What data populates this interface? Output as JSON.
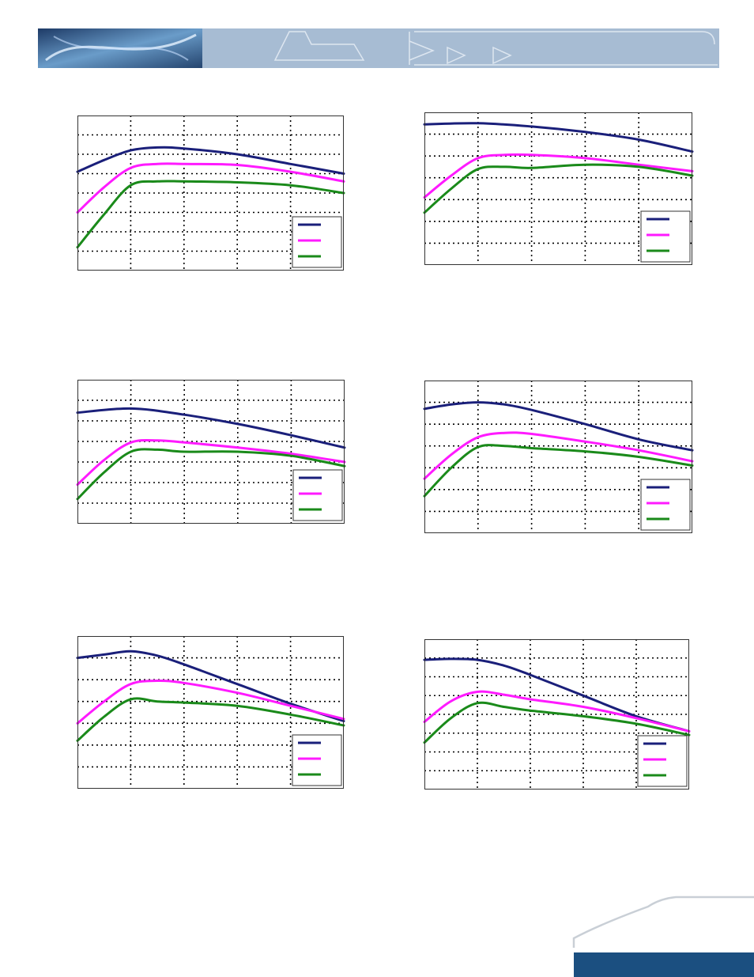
{
  "page": {
    "banner_colors": {
      "left_start": "#1d3a66",
      "left_end": "#6a9cc9",
      "band": "#a7bcd3",
      "outline": "#ffffff"
    },
    "footer_colors": {
      "bar": "#1b4f80",
      "swoosh": "#c9cfd6"
    }
  },
  "legend_colors": {
    "series1": "#1a1f7a",
    "series2": "#ff1aff",
    "series3": "#1a8a1a"
  },
  "chart_data": [
    {
      "type": "line",
      "id": "chart-1",
      "xlim": [
        0,
        5
      ],
      "ylim": [
        0,
        8
      ],
      "x_gridlines": 5,
      "y_gridlines": 8,
      "grid": true,
      "legend_placement": "bottom-right",
      "series": [
        {
          "color": "#1a1f7a",
          "x": [
            0,
            0.5,
            1,
            1.5,
            2,
            3,
            4,
            5
          ],
          "y": [
            5.1,
            5.7,
            6.2,
            6.35,
            6.3,
            6.0,
            5.5,
            5.0
          ]
        },
        {
          "color": "#ff1aff",
          "x": [
            0,
            0.5,
            1,
            1.5,
            2,
            3,
            4,
            5
          ],
          "y": [
            3.0,
            4.3,
            5.3,
            5.5,
            5.5,
            5.45,
            5.1,
            4.6
          ]
        },
        {
          "color": "#1a8a1a",
          "x": [
            0,
            0.5,
            1,
            1.5,
            2,
            3,
            4,
            5
          ],
          "y": [
            1.2,
            2.9,
            4.4,
            4.6,
            4.6,
            4.55,
            4.4,
            4.0
          ]
        }
      ]
    },
    {
      "type": "line",
      "id": "chart-2",
      "xlim": [
        0,
        5
      ],
      "ylim": [
        0,
        7
      ],
      "x_gridlines": 5,
      "y_gridlines": 7,
      "grid": true,
      "legend_placement": "bottom-right",
      "series": [
        {
          "color": "#1a1f7a",
          "x": [
            0,
            1,
            2,
            3,
            4,
            5
          ],
          "y": [
            6.45,
            6.5,
            6.35,
            6.1,
            5.75,
            5.2
          ]
        },
        {
          "color": "#ff1aff",
          "x": [
            0,
            0.5,
            1,
            1.5,
            2,
            3,
            4,
            5
          ],
          "y": [
            3.1,
            4.1,
            4.9,
            5.05,
            5.05,
            4.9,
            4.6,
            4.3
          ]
        },
        {
          "color": "#1a8a1a",
          "x": [
            0,
            0.5,
            1,
            1.5,
            2,
            3,
            4,
            5
          ],
          "y": [
            2.4,
            3.5,
            4.4,
            4.5,
            4.45,
            4.6,
            4.5,
            4.1
          ]
        }
      ]
    },
    {
      "type": "line",
      "id": "chart-3",
      "xlim": [
        0,
        5
      ],
      "ylim": [
        0,
        7
      ],
      "x_gridlines": 5,
      "y_gridlines": 7,
      "grid": true,
      "legend_placement": "bottom-right",
      "series": [
        {
          "color": "#1a1f7a",
          "x": [
            0,
            1,
            2,
            3,
            4,
            5
          ],
          "y": [
            5.4,
            5.6,
            5.3,
            4.85,
            4.3,
            3.7
          ]
        },
        {
          "color": "#ff1aff",
          "x": [
            0,
            0.5,
            1,
            1.5,
            2,
            3,
            4,
            5
          ],
          "y": [
            1.9,
            3.1,
            3.95,
            4.05,
            3.95,
            3.7,
            3.4,
            3.0
          ]
        },
        {
          "color": "#1a8a1a",
          "x": [
            0,
            0.5,
            1,
            1.5,
            2,
            3,
            4,
            5
          ],
          "y": [
            1.2,
            2.5,
            3.5,
            3.6,
            3.5,
            3.5,
            3.3,
            2.8
          ]
        }
      ]
    },
    {
      "type": "line",
      "id": "chart-4",
      "xlim": [
        0,
        5
      ],
      "ylim": [
        0,
        7
      ],
      "x_gridlines": 5,
      "y_gridlines": 7,
      "grid": true,
      "legend_placement": "bottom-right",
      "series": [
        {
          "color": "#1a1f7a",
          "x": [
            0,
            0.5,
            1,
            1.5,
            2,
            3,
            4,
            5
          ],
          "y": [
            5.7,
            5.9,
            6.0,
            5.9,
            5.65,
            5.0,
            4.3,
            3.8
          ]
        },
        {
          "color": "#ff1aff",
          "x": [
            0,
            0.5,
            1,
            1.5,
            2,
            3,
            4,
            5
          ],
          "y": [
            2.5,
            3.6,
            4.4,
            4.6,
            4.55,
            4.2,
            3.8,
            3.3
          ]
        },
        {
          "color": "#1a8a1a",
          "x": [
            0,
            0.5,
            1,
            1.5,
            2,
            3,
            4,
            5
          ],
          "y": [
            1.7,
            3.0,
            3.95,
            4.0,
            3.9,
            3.75,
            3.5,
            3.1
          ]
        }
      ]
    },
    {
      "type": "line",
      "id": "chart-5",
      "xlim": [
        0,
        5
      ],
      "ylim": [
        0,
        7
      ],
      "x_gridlines": 5,
      "y_gridlines": 7,
      "grid": true,
      "legend_placement": "bottom-right",
      "series": [
        {
          "color": "#1a1f7a",
          "x": [
            0,
            0.5,
            1,
            1.5,
            2,
            3,
            4,
            5
          ],
          "y": [
            6.0,
            6.15,
            6.3,
            6.1,
            5.7,
            4.8,
            3.9,
            3.1
          ]
        },
        {
          "color": "#ff1aff",
          "x": [
            0,
            0.5,
            1,
            1.5,
            2,
            3,
            4,
            5
          ],
          "y": [
            3.0,
            4.0,
            4.8,
            4.95,
            4.85,
            4.4,
            3.8,
            3.2
          ]
        },
        {
          "color": "#1a8a1a",
          "x": [
            0,
            0.5,
            1,
            1.5,
            2,
            3,
            4,
            5
          ],
          "y": [
            2.2,
            3.3,
            4.1,
            4.0,
            3.95,
            3.8,
            3.4,
            2.9
          ]
        }
      ]
    },
    {
      "type": "line",
      "id": "chart-6",
      "xlim": [
        0,
        5
      ],
      "ylim": [
        0,
        8
      ],
      "x_gridlines": 5,
      "y_gridlines": 8,
      "grid": true,
      "legend_placement": "bottom-right",
      "series": [
        {
          "color": "#1a1f7a",
          "x": [
            0,
            0.5,
            1,
            1.5,
            2,
            3,
            4,
            5
          ],
          "y": [
            6.9,
            6.95,
            6.9,
            6.6,
            6.1,
            5.0,
            3.9,
            3.1
          ]
        },
        {
          "color": "#ff1aff",
          "x": [
            0,
            0.5,
            1,
            1.5,
            2,
            3,
            4,
            5
          ],
          "y": [
            3.6,
            4.7,
            5.2,
            5.05,
            4.8,
            4.4,
            3.8,
            3.1
          ]
        },
        {
          "color": "#1a8a1a",
          "x": [
            0,
            0.5,
            1,
            1.5,
            2,
            3,
            4,
            5
          ],
          "y": [
            2.5,
            3.8,
            4.6,
            4.4,
            4.2,
            3.9,
            3.5,
            2.9
          ]
        }
      ]
    }
  ]
}
